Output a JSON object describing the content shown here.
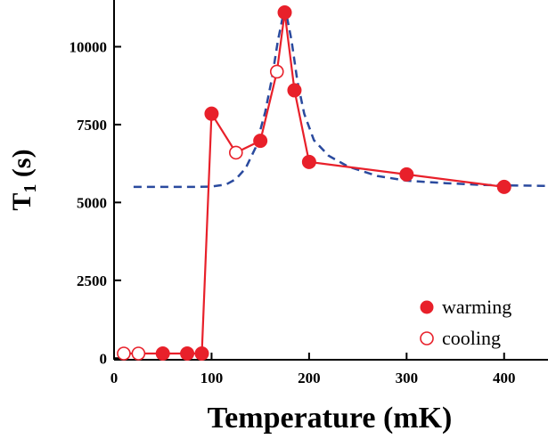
{
  "chart_data": {
    "type": "scatter",
    "xlabel": "Temperature (mK)",
    "ylabel": "T",
    "ylabel_sub": "1",
    "ylabel_unit": " (s)",
    "xlim": [
      0,
      445
    ],
    "ylim": [
      -50,
      11500
    ],
    "x_ticks": [
      0,
      100,
      200,
      300,
      400
    ],
    "x_tick_labels": [
      "0",
      "100",
      "200",
      "300",
      "400"
    ],
    "y_ticks": [
      0,
      2500,
      5000,
      7500,
      10000
    ],
    "y_tick_labels": [
      "0",
      "2500",
      "5000",
      "7500",
      "10000"
    ],
    "grid": false,
    "legend_position": "bottom-right",
    "colors": {
      "marker": "#e8202a",
      "fit": "#2a4a9e",
      "axis": "#000000"
    },
    "series": [
      {
        "name": "warming",
        "marker": "filled-circle",
        "points": [
          {
            "x": 50,
            "y": 150
          },
          {
            "x": 75,
            "y": 150
          },
          {
            "x": 90,
            "y": 150
          },
          {
            "x": 100,
            "y": 7850
          },
          {
            "x": 150,
            "y": 6980
          },
          {
            "x": 175,
            "y": 11100
          },
          {
            "x": 185,
            "y": 8600
          },
          {
            "x": 200,
            "y": 6300
          },
          {
            "x": 300,
            "y": 5900
          },
          {
            "x": 400,
            "y": 5500
          }
        ]
      },
      {
        "name": "cooling",
        "marker": "open-circle",
        "points": [
          {
            "x": 10,
            "y": 150
          },
          {
            "x": 25,
            "y": 150
          },
          {
            "x": 125,
            "y": 6600
          },
          {
            "x": 167,
            "y": 9200
          }
        ]
      }
    ],
    "connecting_line": [
      {
        "x": 10,
        "y": 150
      },
      {
        "x": 25,
        "y": 150
      },
      {
        "x": 50,
        "y": 150
      },
      {
        "x": 75,
        "y": 150
      },
      {
        "x": 90,
        "y": 150
      },
      {
        "x": 100,
        "y": 7850
      },
      {
        "x": 125,
        "y": 6600
      },
      {
        "x": 150,
        "y": 6980
      },
      {
        "x": 167,
        "y": 9200
      },
      {
        "x": 175,
        "y": 11100
      },
      {
        "x": 185,
        "y": 8600
      },
      {
        "x": 200,
        "y": 6300
      },
      {
        "x": 300,
        "y": 5900
      },
      {
        "x": 400,
        "y": 5500
      }
    ],
    "fit_curve": [
      {
        "x": 20,
        "y": 5500
      },
      {
        "x": 80,
        "y": 5500
      },
      {
        "x": 100,
        "y": 5510
      },
      {
        "x": 115,
        "y": 5580
      },
      {
        "x": 125,
        "y": 5750
      },
      {
        "x": 135,
        "y": 6100
      },
      {
        "x": 145,
        "y": 6750
      },
      {
        "x": 155,
        "y": 7900
      },
      {
        "x": 162,
        "y": 9000
      },
      {
        "x": 168,
        "y": 10200
      },
      {
        "x": 173,
        "y": 10950
      },
      {
        "x": 177,
        "y": 11000
      },
      {
        "x": 182,
        "y": 10200
      },
      {
        "x": 188,
        "y": 8900
      },
      {
        "x": 195,
        "y": 7850
      },
      {
        "x": 205,
        "y": 7000
      },
      {
        "x": 220,
        "y": 6500
      },
      {
        "x": 240,
        "y": 6150
      },
      {
        "x": 270,
        "y": 5850
      },
      {
        "x": 300,
        "y": 5700
      },
      {
        "x": 340,
        "y": 5620
      },
      {
        "x": 380,
        "y": 5560
      },
      {
        "x": 445,
        "y": 5530
      }
    ]
  }
}
